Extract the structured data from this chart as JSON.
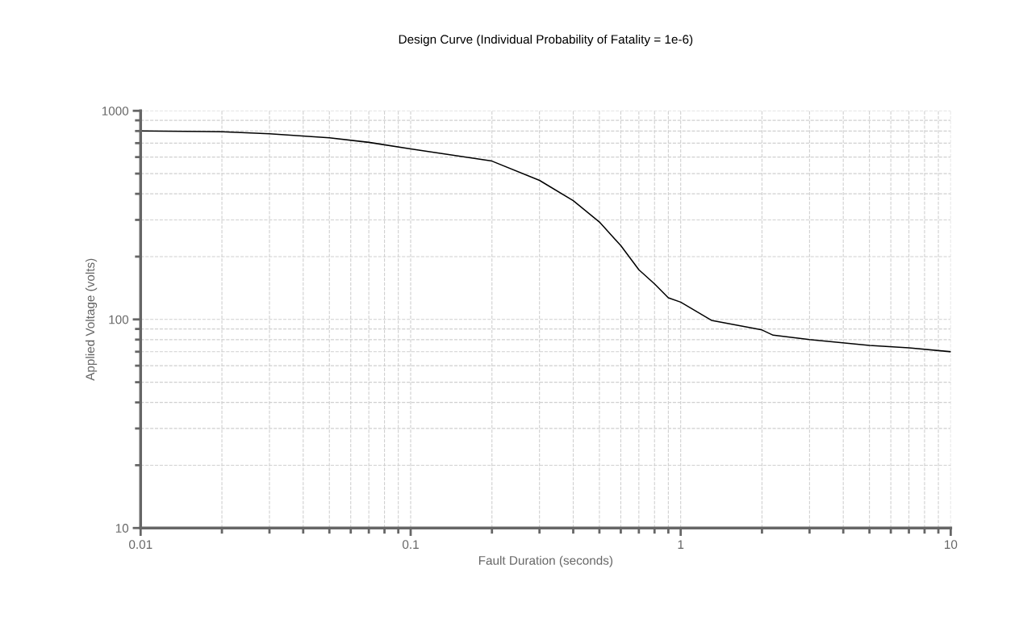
{
  "chart_data": {
    "type": "line",
    "title": "Design Curve (Individual Probability of Fatality = 1e-6)",
    "xlabel": "Fault Duration (seconds)",
    "ylabel": "Applied Voltage (volts)",
    "log": "xy",
    "grid": true,
    "xlim": [
      0.01,
      10
    ],
    "xticks": [
      0.01,
      0.1,
      1,
      10
    ],
    "ylim": [
      10,
      1000
    ],
    "yticks": [
      10,
      100,
      1000
    ],
    "series": [
      {
        "color": "#000000",
        "x": [
          0.01,
          0.02,
          0.03,
          0.05,
          0.07,
          0.1,
          0.2,
          0.3,
          0.4,
          0.5,
          0.6,
          0.7,
          0.8,
          0.9,
          1,
          1.3,
          2,
          2.2,
          3,
          5,
          7,
          10
        ],
        "values": [
          800,
          794,
          776,
          743,
          706,
          656,
          574,
          464,
          371,
          293,
          226,
          173,
          148,
          127,
          121,
          99,
          89,
          84,
          80,
          75,
          73,
          70
        ]
      }
    ]
  }
}
